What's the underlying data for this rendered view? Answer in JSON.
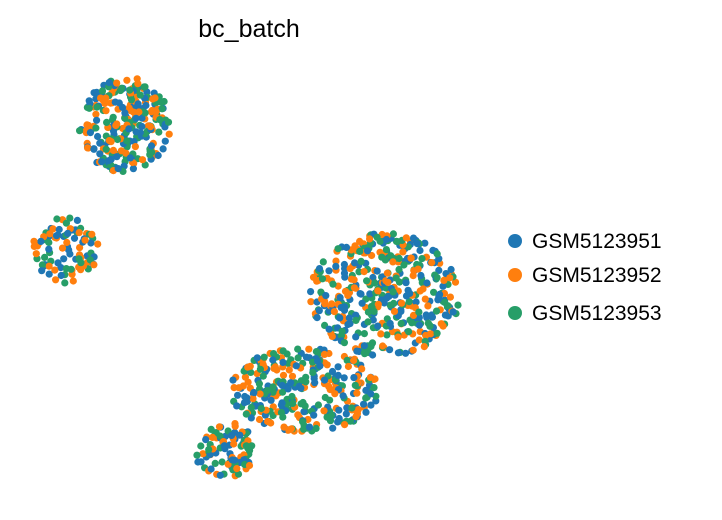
{
  "chart_data": {
    "type": "scatter",
    "title": "bc_batch",
    "xlabel": "",
    "ylabel": "",
    "grid": false,
    "axes_visible": false,
    "legend_placement": "right",
    "series": [
      {
        "name": "GSM5123951",
        "color": "#1f77b4"
      },
      {
        "name": "GSM5123952",
        "color": "#ff7f0e"
      },
      {
        "name": "GSM5123953",
        "color": "#279e68"
      }
    ],
    "clusters": [
      {
        "center": [
          125,
          125
        ],
        "radius": [
          46,
          48
        ],
        "points": 260
      },
      {
        "center": [
          65,
          250
        ],
        "radius": [
          34,
          33
        ],
        "points": 90
      },
      {
        "center": [
          385,
          295
        ],
        "radius": [
          75,
          62
        ],
        "points": 420
      },
      {
        "center": [
          305,
          390
        ],
        "radius": [
          75,
          42
        ],
        "points": 300
      },
      {
        "center": [
          225,
          450
        ],
        "radius": [
          30,
          28
        ],
        "points": 90
      }
    ]
  }
}
